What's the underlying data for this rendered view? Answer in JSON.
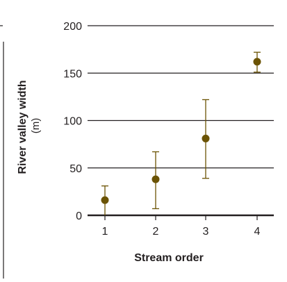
{
  "chart_data": {
    "type": "scatter",
    "xlabel": "Stream order",
    "ylabel": "River valley width",
    "yunit": "(m)",
    "ylim": [
      0,
      200
    ],
    "yticks": [
      0,
      50,
      100,
      150,
      200
    ],
    "grid": true,
    "categories": [
      "1",
      "2",
      "3",
      "4"
    ],
    "points": [
      {
        "x": "1",
        "y": 16,
        "err_low": 0,
        "err_high": 31
      },
      {
        "x": "2",
        "y": 38,
        "err_low": 7,
        "err_high": 67
      },
      {
        "x": "3",
        "y": 81,
        "err_low": 39,
        "err_high": 122
      },
      {
        "x": "4",
        "y": 162,
        "err_low": 151,
        "err_high": 172
      }
    ],
    "colors": {
      "marker": "#6b5303",
      "axis": "#231f20"
    }
  }
}
